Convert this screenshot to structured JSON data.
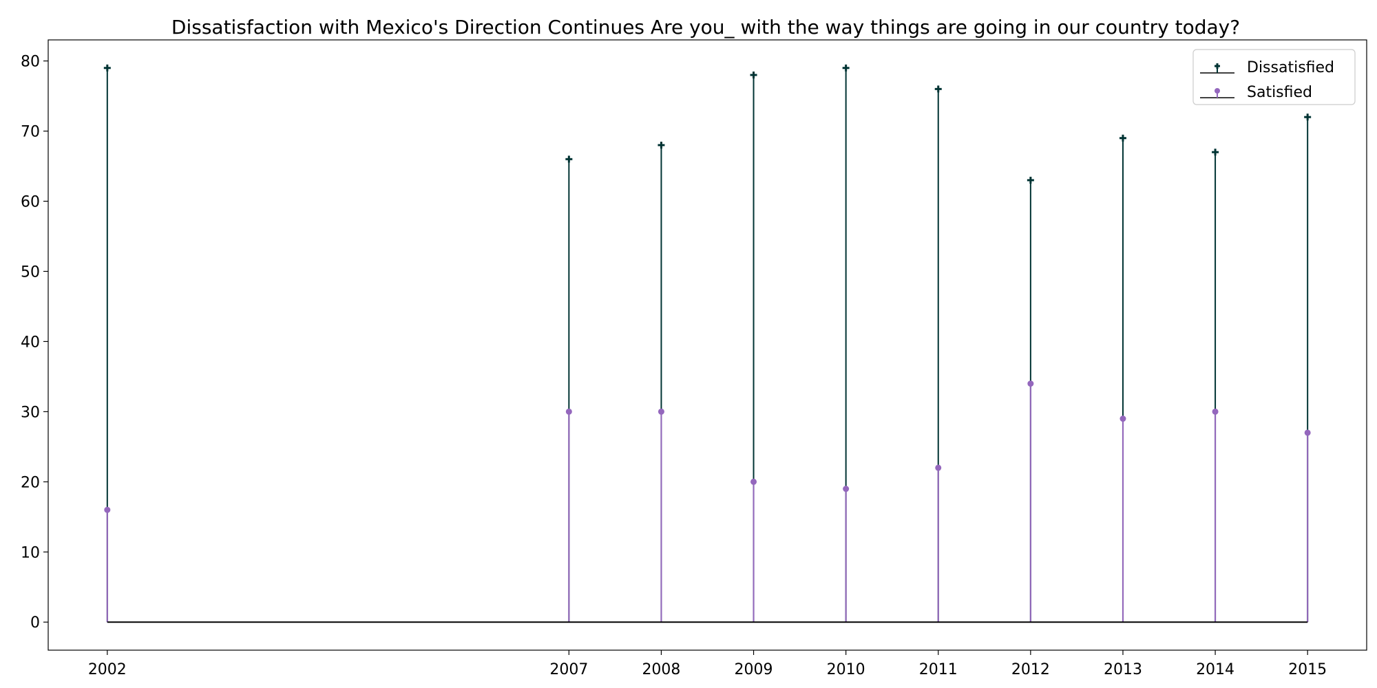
{
  "chart_data": {
    "type": "stem",
    "title": "Dissatisfaction with Mexico's Direction Continues Are you_ with the way things are going in our country today?",
    "xlabel": "",
    "ylabel": "",
    "x": [
      2002,
      2007,
      2008,
      2009,
      2010,
      2011,
      2012,
      2013,
      2014,
      2015
    ],
    "x_ticks": [
      "2002",
      "2007",
      "2008",
      "2009",
      "2010",
      "2011",
      "2012",
      "2013",
      "2014",
      "2015"
    ],
    "y_ticks": [
      "0",
      "10",
      "20",
      "30",
      "40",
      "50",
      "60",
      "70",
      "80"
    ],
    "xlim": [
      2001.36,
      2015.64
    ],
    "ylim": [
      -4,
      83
    ],
    "grid": false,
    "legend_position": "top-right",
    "series": [
      {
        "name": "Dissatisfied",
        "marker": "plus",
        "color": "#003333",
        "values": [
          79,
          66,
          68,
          78,
          79,
          76,
          63,
          69,
          67,
          72
        ]
      },
      {
        "name": "Satisfied",
        "marker": "circle",
        "color": "#9467bd",
        "values": [
          16,
          30,
          30,
          20,
          19,
          22,
          34,
          29,
          30,
          27
        ]
      }
    ],
    "baseline": {
      "value": 0,
      "color": "#000000"
    }
  }
}
